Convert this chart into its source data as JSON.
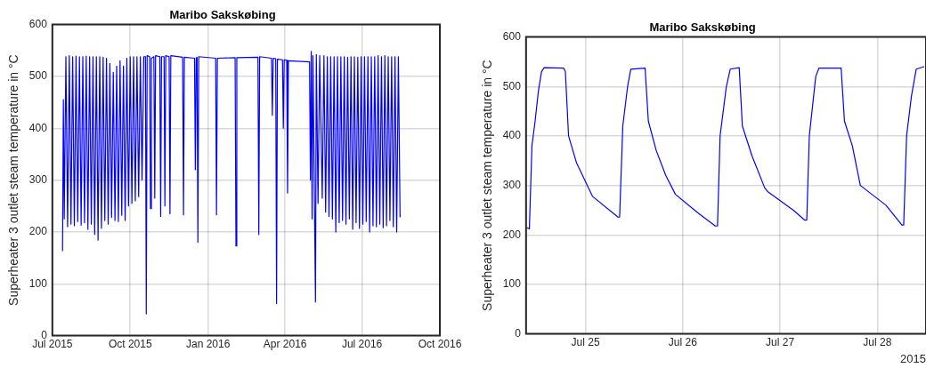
{
  "chart_data": [
    {
      "type": "line",
      "title": "Maribo Sakskøbing",
      "ylabel": "Superheater 3 outlet steam temperature in °C",
      "xlim": [
        "2015-07-01",
        "2016-10-01"
      ],
      "xticks": [
        {
          "value": "2015-07-01",
          "label": "Jul 2015"
        },
        {
          "value": "2015-10-01",
          "label": "Oct 2015"
        },
        {
          "value": "2016-01-01",
          "label": "Jan 2016"
        },
        {
          "value": "2016-04-01",
          "label": "Apr 2016"
        },
        {
          "value": "2016-07-01",
          "label": "Jul 2016"
        },
        {
          "value": "2016-10-01",
          "label": "Oct 2016"
        }
      ],
      "ylim": [
        0,
        600
      ],
      "yticks": [
        0,
        100,
        200,
        300,
        400,
        500,
        600
      ],
      "grid": true,
      "x": [
        "2015-07-13",
        "2015-07-14",
        "2015-07-15",
        "2015-07-17",
        "2015-07-19",
        "2015-07-21",
        "2015-07-23",
        "2015-07-25",
        "2015-07-27",
        "2015-07-29",
        "2015-07-31",
        "2015-08-02",
        "2015-08-04",
        "2015-08-06",
        "2015-08-08",
        "2015-08-10",
        "2015-08-12",
        "2015-08-14",
        "2015-08-16",
        "2015-08-18",
        "2015-08-20",
        "2015-08-22",
        "2015-08-24",
        "2015-08-26",
        "2015-08-28",
        "2015-08-30",
        "2015-09-01",
        "2015-09-03",
        "2015-09-05",
        "2015-09-07",
        "2015-09-09",
        "2015-09-11",
        "2015-09-13",
        "2015-09-15",
        "2015-09-17",
        "2015-09-19",
        "2015-09-21",
        "2015-09-23",
        "2015-09-25",
        "2015-09-27",
        "2015-09-29",
        "2015-10-01",
        "2015-10-03",
        "2015-10-05",
        "2015-10-07",
        "2015-10-09",
        "2015-10-11",
        "2015-10-13",
        "2015-10-15",
        "2015-10-17",
        "2015-10-19",
        "2015-10-20",
        "2015-10-21",
        "2015-10-24",
        "2015-10-25",
        "2015-10-26",
        "2015-10-29",
        "2015-10-30",
        "2015-10-31",
        "2015-11-05",
        "2015-11-06",
        "2015-11-07",
        "2015-11-10",
        "2015-11-11",
        "2015-11-12",
        "2015-11-16",
        "2015-11-17",
        "2015-11-18",
        "2015-12-02",
        "2015-12-03",
        "2015-12-04",
        "2015-12-16",
        "2015-12-17",
        "2015-12-18",
        "2015-12-19",
        "2015-12-20",
        "2015-12-21",
        "2016-01-10",
        "2016-01-11",
        "2016-01-12",
        "2016-02-02",
        "2016-02-03",
        "2016-02-04",
        "2016-02-29",
        "2016-03-01",
        "2016-03-02",
        "2016-03-16",
        "2016-03-17",
        "2016-03-18",
        "2016-03-21",
        "2016-03-22",
        "2016-03-23",
        "2016-03-29",
        "2016-03-30",
        "2016-03-31",
        "2016-04-03",
        "2016-04-04",
        "2016-04-05",
        "2016-04-30",
        "2016-05-01",
        "2016-05-02",
        "2016-05-03",
        "2016-05-04",
        "2016-05-07",
        "2016-05-08",
        "2016-05-10",
        "2016-05-12",
        "2016-05-15",
        "2016-05-17",
        "2016-05-19",
        "2016-05-21",
        "2016-05-23",
        "2016-05-25",
        "2016-05-27",
        "2016-05-29",
        "2016-05-31",
        "2016-06-02",
        "2016-06-04",
        "2016-06-06",
        "2016-06-08",
        "2016-06-10",
        "2016-06-12",
        "2016-06-14",
        "2016-06-16",
        "2016-06-18",
        "2016-06-20",
        "2016-06-22",
        "2016-06-24",
        "2016-06-26",
        "2016-06-28",
        "2016-06-30",
        "2016-07-02",
        "2016-07-04",
        "2016-07-06",
        "2016-07-08",
        "2016-07-10",
        "2016-07-12",
        "2016-07-14",
        "2016-07-16",
        "2016-07-18",
        "2016-07-20",
        "2016-07-22",
        "2016-07-24",
        "2016-07-26",
        "2016-07-28",
        "2016-07-30",
        "2016-08-01",
        "2016-08-03",
        "2016-08-05",
        "2016-08-07",
        "2016-08-09",
        "2016-08-11",
        "2016-08-13",
        "2016-08-15"
      ],
      "series": [
        {
          "color": "#0000ff",
          "values": [
            163,
            455,
            225,
            538,
            210,
            540,
            215,
            538,
            212,
            539,
            220,
            538,
            213,
            538,
            218,
            539,
            205,
            538,
            215,
            538,
            195,
            538,
            184,
            538,
            207,
            537,
            222,
            535,
            215,
            525,
            228,
            508,
            222,
            520,
            220,
            530,
            232,
            520,
            222,
            535,
            250,
            538,
            255,
            538,
            260,
            538,
            268,
            538,
            300,
            538,
            538,
            42,
            540,
            538,
            245,
            535,
            538,
            265,
            540,
            538,
            230,
            538,
            538,
            250,
            540,
            538,
            235,
            540,
            537,
            233,
            537,
            535,
            320,
            535,
            537,
            180,
            538,
            535,
            233,
            535,
            536,
            173,
            536,
            537,
            195,
            538,
            535,
            425,
            535,
            534,
            62,
            533,
            532,
            400,
            532,
            531,
            275,
            530,
            528,
            300,
            548,
            225,
            540,
            65,
            542,
            255,
            540,
            265,
            540,
            238,
            538,
            230,
            538,
            225,
            538,
            200,
            538,
            218,
            538,
            222,
            538,
            215,
            537,
            225,
            538,
            205,
            538,
            218,
            537,
            207,
            538,
            215,
            538,
            220,
            538,
            200,
            538,
            212,
            538,
            210,
            540,
            215,
            538,
            208,
            540,
            212,
            538,
            222,
            538,
            210,
            538,
            200,
            538,
            228
          ]
        }
      ]
    },
    {
      "type": "line",
      "title": "Maribo Sakskøbing",
      "ylabel": "Superheater 3 outlet steam temperature in °C",
      "annotations": [
        "2015"
      ],
      "xlim": [
        "2015-07-24T09:20",
        "2015-07-28T12:00"
      ],
      "xticks": [
        {
          "value": "2015-07-25",
          "label": "Jul 25"
        },
        {
          "value": "2015-07-26",
          "label": "Jul 26"
        },
        {
          "value": "2015-07-27",
          "label": "Jul 27"
        },
        {
          "value": "2015-07-28",
          "label": "Jul 28"
        }
      ],
      "ylim": [
        0,
        600
      ],
      "yticks": [
        0,
        100,
        200,
        300,
        400,
        500,
        600
      ],
      "grid": true,
      "x": [
        "2015-07-24T09:27",
        "2015-07-24T10:09",
        "2015-07-24T10:47",
        "2015-07-24T11:34",
        "2015-07-24T12:22",
        "2015-07-24T13:09",
        "2015-07-24T13:47",
        "2015-07-24T18:38",
        "2015-07-24T19:02",
        "2015-07-24T19:49",
        "2015-07-24T21:49",
        "2015-07-25T01:43",
        "2015-07-25T08:01",
        "2015-07-25T08:25",
        "2015-07-25T09:12",
        "2015-07-25T10:23",
        "2015-07-25T11:10",
        "2015-07-25T14:42",
        "2015-07-25T15:30",
        "2015-07-25T17:28",
        "2015-07-25T19:49",
        "2015-07-25T22:11",
        "2015-07-26T03:40",
        "2015-07-26T08:01",
        "2015-07-26T08:34",
        "2015-07-26T09:12",
        "2015-07-26T10:45",
        "2015-07-26T11:42",
        "2015-07-26T13:55",
        "2015-07-26T14:42",
        "2015-07-26T17:04",
        "2015-07-26T20:13",
        "2015-07-26T21:00",
        "2015-07-27T03:17",
        "2015-07-27T06:03",
        "2015-07-27T06:35",
        "2015-07-27T07:13",
        "2015-07-27T08:48",
        "2015-07-27T09:35",
        "2015-07-27T15:04",
        "2015-07-27T15:53",
        "2015-07-27T17:50",
        "2015-07-27T19:48",
        "2015-07-28T02:07",
        "2015-07-28T06:03",
        "2015-07-28T06:30",
        "2015-07-28T07:13",
        "2015-07-28T08:24",
        "2015-07-28T09:35",
        "2015-07-28T11:33"
      ],
      "series": [
        {
          "color": "#0000ff",
          "values": [
            215,
            212,
            380,
            430,
            490,
            530,
            538,
            537,
            530,
            400,
            345,
            278,
            236,
            236,
            420,
            500,
            535,
            537,
            430,
            370,
            320,
            282,
            245,
            218,
            218,
            400,
            500,
            535,
            538,
            420,
            360,
            295,
            287,
            250,
            230,
            230,
            400,
            520,
            537,
            537,
            430,
            380,
            300,
            260,
            220,
            220,
            400,
            480,
            535,
            540
          ]
        }
      ]
    }
  ]
}
